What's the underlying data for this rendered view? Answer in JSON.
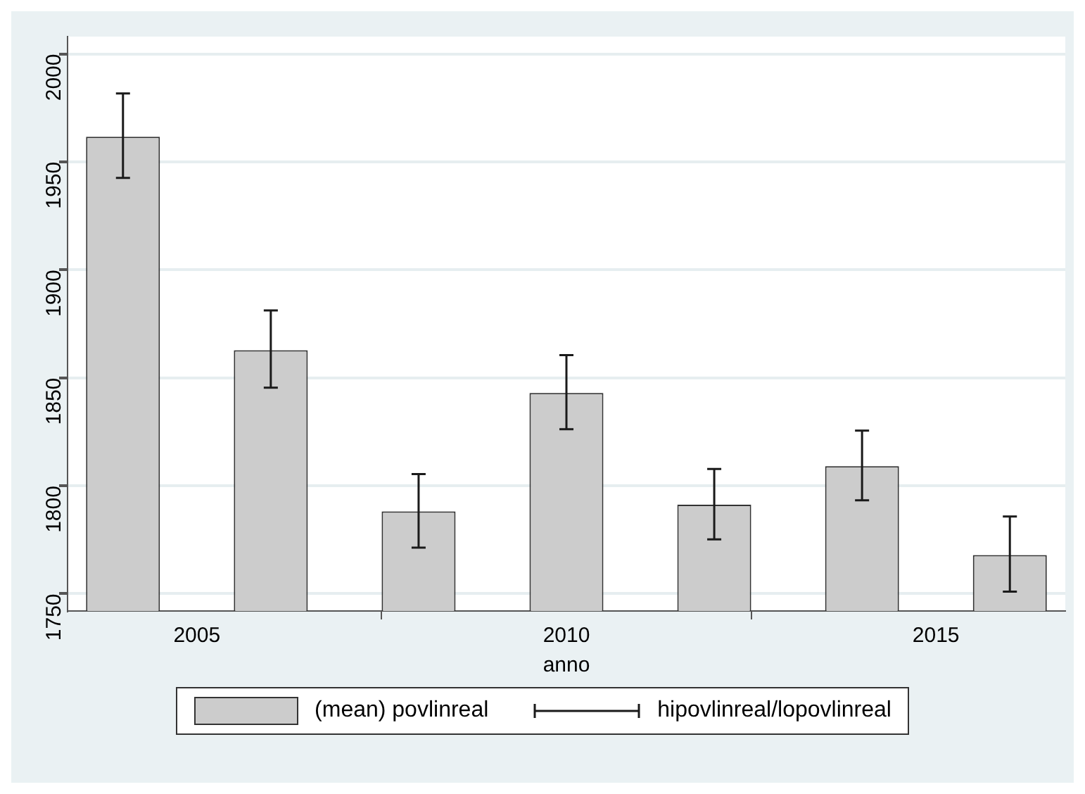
{
  "chart_data": {
    "type": "bar",
    "xlabel": "anno",
    "x": [
      2004,
      2006,
      2008,
      2010,
      2012,
      2014,
      2016
    ],
    "series": [
      {
        "name": "(mean) povlinreal",
        "color": "#cccccc",
        "values": [
          1961.6,
          1862.8,
          1788.1,
          1843,
          1791.2,
          1809.1,
          1767.9
        ],
        "errors": [
          [
            1942.6,
            1981.7
          ],
          [
            1845.4,
            1881.2
          ],
          [
            1771.3,
            1805.4
          ],
          [
            1826.2,
            1860.5
          ],
          [
            1775.2,
            1807.8
          ],
          [
            1793.3,
            1825.5
          ],
          [
            1751,
            1785.8
          ]
        ]
      }
    ],
    "annotations": [
      "hipovlinreal/lopovlinreal"
    ],
    "xlim": [
      2003.25,
      2016.75
    ],
    "xticks": [
      2005,
      2010,
      2015
    ],
    "ylim": [
      1742,
      2008
    ],
    "yticks": [
      1750,
      1800,
      1850,
      1900,
      1950,
      2000
    ],
    "grid": "y",
    "legend": "bottom"
  }
}
